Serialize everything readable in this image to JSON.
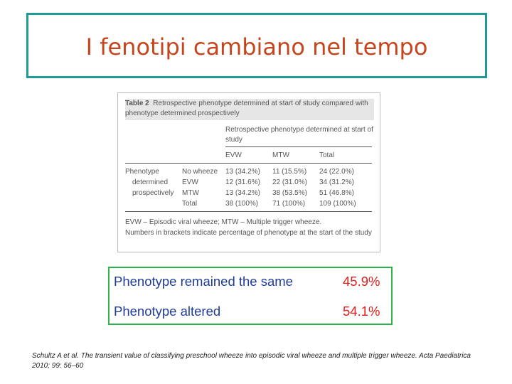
{
  "title": "I fenotipi cambiano nel tempo",
  "table": {
    "caption_label": "Table 2",
    "caption": "Retrospective phenotype determined at start of study compared with phenotype determined prospectively",
    "group_header": "Retrospective phenotype determined at start of study",
    "columns": [
      "EVW",
      "MTW",
      "Total"
    ],
    "row_header": [
      "Phenotype",
      "determined",
      "prospectively"
    ],
    "rows": [
      [
        "No wheeze",
        "13 (34.2%)",
        "11 (15.5%)",
        "24 (22.0%)"
      ],
      [
        "EVW",
        "12 (31.6%)",
        "22 (31.0%)",
        "34 (31.2%)"
      ],
      [
        "MTW",
        "13 (34.2%)",
        "38 (53.5%)",
        "51 (46.8%)"
      ],
      [
        "Total",
        "38 (100%)",
        "71 (100%)",
        "109 (100%)"
      ]
    ],
    "footnotes": [
      "EVW – Episodic viral wheeze; MTW – Multiple trigger wheeze.",
      "Numbers in brackets indicate percentage of phenotype at the start of the study"
    ]
  },
  "summary": [
    {
      "label": "Phenotype remained the same",
      "value": "45.9%"
    },
    {
      "label": "Phenotype altered",
      "value": "54.1%"
    }
  ],
  "citation": "Schultz A et al. The transient value of classifying preschool wheeze into episodic viral wheeze and multiple trigger wheeze. Acta Paediatrica 2010; 99: 56–60"
}
